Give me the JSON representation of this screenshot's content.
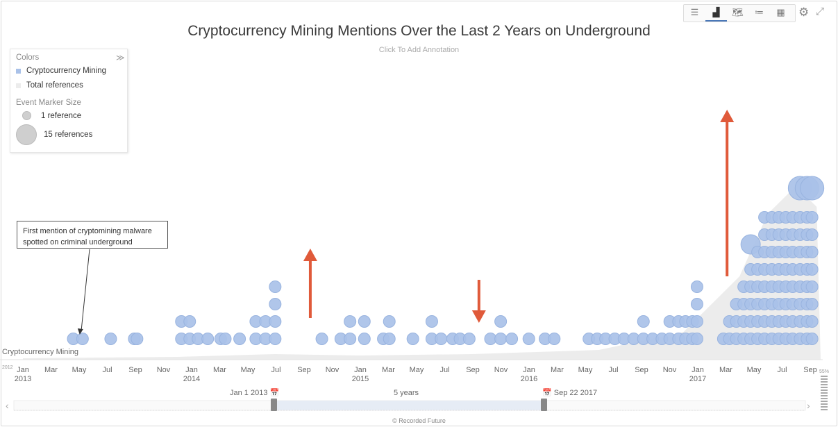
{
  "toolbar": {
    "views": [
      {
        "name": "list-view-icon",
        "glyph": "☰"
      },
      {
        "name": "timeline-chart-icon",
        "glyph": "▟"
      },
      {
        "name": "map-view-icon",
        "glyph": "🗺"
      },
      {
        "name": "bullet-list-icon",
        "glyph": "≔"
      },
      {
        "name": "grid-view-icon",
        "glyph": "▦"
      }
    ],
    "active_view": 1,
    "settings_icon": "⚙",
    "expand_icon": "⤢"
  },
  "legend": {
    "colors_header": "Colors",
    "collapse_icon": "≫",
    "series": [
      {
        "label": "Cryptocurrency Mining",
        "color": "#a9c1e8"
      },
      {
        "label": "Total references",
        "color": "#ececec"
      }
    ],
    "marker_header": "Event Marker Size",
    "markers": [
      {
        "label": "1 reference",
        "refs": 1
      },
      {
        "label": "15 references",
        "refs": 15
      }
    ]
  },
  "annotation": {
    "text": "First mention of cryptomining malware spotted on criminal underground"
  },
  "navigator": {
    "start": "Jan 1 2013",
    "end": "Sep 22 2017",
    "length": "5 years",
    "zoom": "55%",
    "left_arrow": "‹",
    "right_arrow": "›",
    "calendar_icon": "📅"
  },
  "credit": "© Recorded Future",
  "chart_data": {
    "type": "scatter",
    "title": "Cryptocurrency Mining Mentions Over the Last 2 Years on Underground",
    "subtitle": "Click To Add Annotation",
    "series_label": "Cryptocurrency Mining",
    "marker_color": "#a9c1e8",
    "area_color": "#ececec",
    "arrow_color": "#e05a3a",
    "x_start_label": "2012",
    "x_ticks": [
      {
        "label": "Jan",
        "year": "2013"
      },
      {
        "label": "Mar"
      },
      {
        "label": "May"
      },
      {
        "label": "Jul"
      },
      {
        "label": "Sep"
      },
      {
        "label": "Nov"
      },
      {
        "label": "Jan",
        "year": "2014"
      },
      {
        "label": "Mar"
      },
      {
        "label": "May"
      },
      {
        "label": "Jul"
      },
      {
        "label": "Sep"
      },
      {
        "label": "Nov"
      },
      {
        "label": "Jan",
        "year": "2015"
      },
      {
        "label": "Mar"
      },
      {
        "label": "May"
      },
      {
        "label": "Jul"
      },
      {
        "label": "Sep"
      },
      {
        "label": "Nov"
      },
      {
        "label": "Jan",
        "year": "2016"
      },
      {
        "label": "Mar"
      },
      {
        "label": "May"
      },
      {
        "label": "Jul"
      },
      {
        "label": "Sep"
      },
      {
        "label": "Nov"
      },
      {
        "label": "Jan",
        "year": "2017"
      },
      {
        "label": "Mar"
      },
      {
        "label": "May"
      },
      {
        "label": "Jul"
      },
      {
        "label": "Sep"
      }
    ],
    "events": [
      {
        "date": "2013-04-20",
        "stack": [
          1
        ]
      },
      {
        "date": "2013-05-10",
        "stack": [
          1
        ]
      },
      {
        "date": "2013-07-10",
        "stack": [
          1
        ]
      },
      {
        "date": "2013-08-30",
        "stack": [
          1
        ]
      },
      {
        "date": "2013-09-05",
        "stack": [
          1
        ]
      },
      {
        "date": "2013-12-10",
        "stack": [
          1,
          1
        ]
      },
      {
        "date": "2013-12-28",
        "stack": [
          1,
          1
        ]
      },
      {
        "date": "2014-01-15",
        "stack": [
          1
        ]
      },
      {
        "date": "2014-02-05",
        "stack": [
          1
        ]
      },
      {
        "date": "2014-03-05",
        "stack": [
          1
        ]
      },
      {
        "date": "2014-03-15",
        "stack": [
          1
        ]
      },
      {
        "date": "2014-04-15",
        "stack": [
          1
        ]
      },
      {
        "date": "2014-05-20",
        "stack": [
          1,
          1
        ]
      },
      {
        "date": "2014-06-10",
        "stack": [
          1,
          1
        ]
      },
      {
        "date": "2014-07-01",
        "stack": [
          1,
          1,
          1,
          1
        ]
      },
      {
        "date": "2014-10-10",
        "stack": [
          1
        ]
      },
      {
        "date": "2014-11-20",
        "stack": [
          1
        ]
      },
      {
        "date": "2014-12-10",
        "stack": [
          1,
          1
        ]
      },
      {
        "date": "2015-01-10",
        "stack": [
          1,
          1
        ]
      },
      {
        "date": "2015-02-20",
        "stack": [
          1
        ]
      },
      {
        "date": "2015-03-05",
        "stack": [
          1,
          1
        ]
      },
      {
        "date": "2015-04-25",
        "stack": [
          1
        ]
      },
      {
        "date": "2015-06-05",
        "stack": [
          1,
          1
        ]
      },
      {
        "date": "2015-06-25",
        "stack": [
          1
        ]
      },
      {
        "date": "2015-07-20",
        "stack": [
          1
        ]
      },
      {
        "date": "2015-08-05",
        "stack": [
          1
        ]
      },
      {
        "date": "2015-08-25",
        "stack": [
          1
        ]
      },
      {
        "date": "2015-10-10",
        "stack": [
          1
        ]
      },
      {
        "date": "2015-11-01",
        "stack": [
          1,
          1
        ]
      },
      {
        "date": "2015-11-25",
        "stack": [
          1
        ]
      },
      {
        "date": "2016-01-01",
        "stack": [
          1
        ]
      },
      {
        "date": "2016-02-05",
        "stack": [
          1
        ]
      },
      {
        "date": "2016-02-25",
        "stack": [
          1
        ]
      },
      {
        "date": "2016-05-10",
        "stack": [
          1
        ]
      },
      {
        "date": "2016-05-28",
        "stack": [
          1
        ]
      },
      {
        "date": "2016-06-15",
        "stack": [
          1
        ]
      },
      {
        "date": "2016-07-05",
        "stack": [
          1
        ]
      },
      {
        "date": "2016-07-25",
        "stack": [
          1
        ]
      },
      {
        "date": "2016-08-15",
        "stack": [
          1
        ]
      },
      {
        "date": "2016-09-05",
        "stack": [
          1,
          1
        ]
      },
      {
        "date": "2016-09-25",
        "stack": [
          1
        ]
      },
      {
        "date": "2016-10-15",
        "stack": [
          1
        ]
      },
      {
        "date": "2016-11-01",
        "stack": [
          1,
          1
        ]
      },
      {
        "date": "2016-11-20",
        "stack": [
          1,
          1
        ]
      },
      {
        "date": "2016-12-05",
        "stack": [
          1,
          1
        ]
      },
      {
        "date": "2016-12-20",
        "stack": [
          1,
          1
        ]
      },
      {
        "date": "2016-12-30",
        "stack": [
          1,
          1,
          1,
          1
        ]
      },
      {
        "date": "2017-02-25",
        "stack": [
          1
        ]
      },
      {
        "date": "2017-03-10",
        "stack": [
          1,
          1
        ]
      },
      {
        "date": "2017-03-25",
        "stack": [
          1,
          1,
          1
        ]
      },
      {
        "date": "2017-04-10",
        "stack": [
          1,
          1,
          1,
          1
        ]
      },
      {
        "date": "2017-04-25",
        "stack": [
          1,
          1,
          1,
          1,
          1,
          8
        ]
      },
      {
        "date": "2017-05-10",
        "stack": [
          1,
          1,
          1,
          1,
          1,
          1
        ]
      },
      {
        "date": "2017-05-25",
        "stack": [
          1,
          1,
          1,
          1,
          1,
          1,
          1,
          1
        ]
      },
      {
        "date": "2017-06-10",
        "stack": [
          1,
          1,
          1,
          1,
          1,
          1,
          1,
          1
        ]
      },
      {
        "date": "2017-06-25",
        "stack": [
          1,
          1,
          1,
          1,
          1,
          1,
          1,
          1
        ]
      },
      {
        "date": "2017-07-10",
        "stack": [
          1,
          1,
          1,
          1,
          1,
          1,
          1,
          1
        ]
      },
      {
        "date": "2017-07-25",
        "stack": [
          1,
          1,
          1,
          1,
          1,
          1,
          1,
          1
        ]
      },
      {
        "date": "2017-08-10",
        "stack": [
          1,
          1,
          1,
          1,
          1,
          1,
          1,
          1,
          15
        ]
      },
      {
        "date": "2017-08-25",
        "stack": [
          1,
          1,
          1,
          1,
          1,
          1,
          1,
          1,
          15
        ]
      },
      {
        "date": "2017-09-05",
        "stack": [
          1,
          1,
          1,
          1,
          1,
          1,
          1,
          1,
          15
        ]
      }
    ],
    "arrows": [
      {
        "date": "2014-09-15",
        "direction": "up",
        "length": "medium"
      },
      {
        "date": "2015-09-15",
        "direction": "down",
        "length": "short"
      },
      {
        "date": "2017-03-05",
        "direction": "up",
        "length": "long"
      }
    ],
    "annotation_pointer_date": "2013-05-01"
  }
}
